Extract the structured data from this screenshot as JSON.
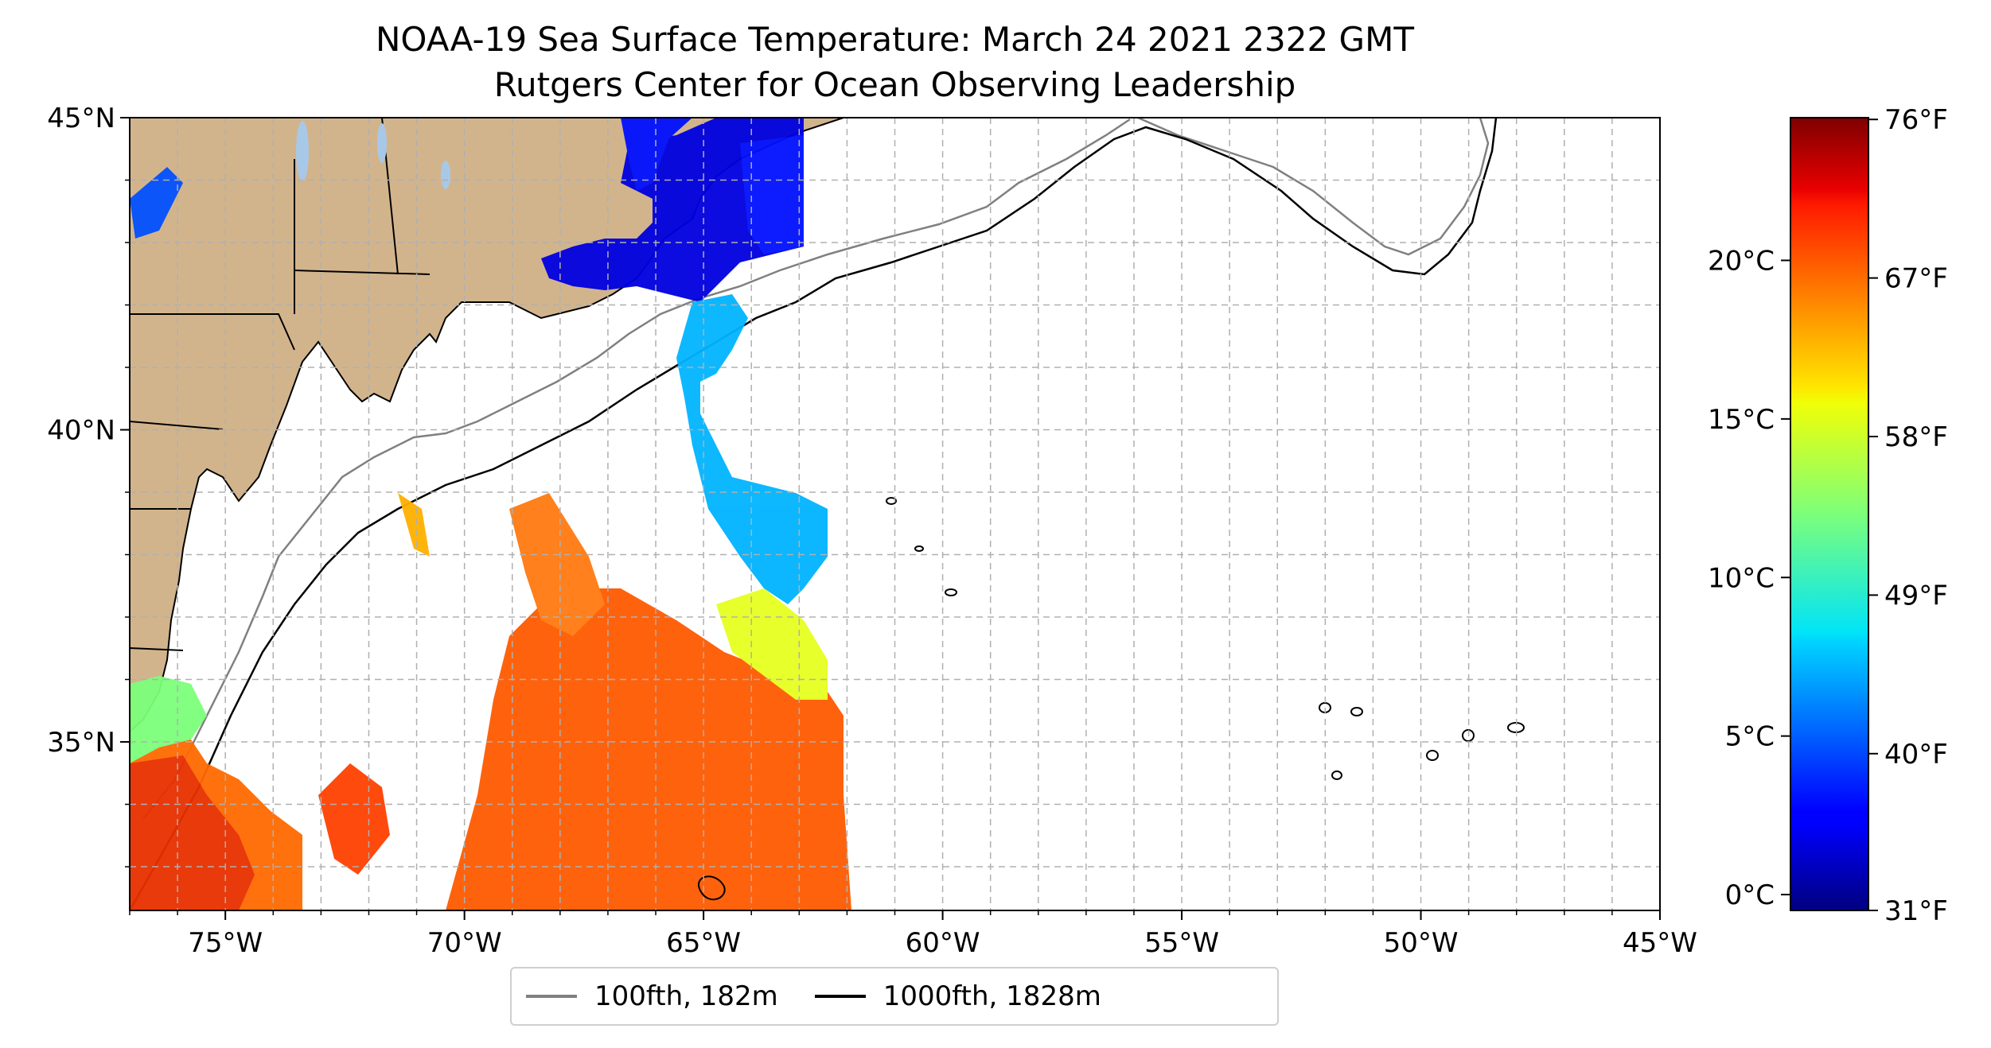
{
  "title": "NOAA-19 Sea Surface Temperature: March 24 2021 2322 GMT",
  "subtitle": "Rutgers Center for Ocean Observing Leadership",
  "map": {
    "lon_range": [
      -77,
      -45
    ],
    "lat_range": [
      32.3,
      45
    ],
    "lon_ticks": [
      {
        "value": -75,
        "label": "75°W"
      },
      {
        "value": -70,
        "label": "70°W"
      },
      {
        "value": -65,
        "label": "65°W"
      },
      {
        "value": -60,
        "label": "60°W"
      },
      {
        "value": -55,
        "label": "55°W"
      },
      {
        "value": -50,
        "label": "50°W"
      },
      {
        "value": -45,
        "label": "45°W"
      }
    ],
    "lat_ticks": [
      {
        "value": 45,
        "label": "45°N"
      },
      {
        "value": 40,
        "label": "40°N"
      },
      {
        "value": 35,
        "label": "35°N"
      }
    ],
    "grid": true,
    "land_color": "#d2b48c",
    "coastline_color": "#000000"
  },
  "colorbar": {
    "colormap": "jet",
    "celsius_range": [
      -0.5,
      24.5
    ],
    "celsius_ticks": [
      {
        "value": 0,
        "label": "0°C"
      },
      {
        "value": 5,
        "label": "5°C"
      },
      {
        "value": 10,
        "label": "10°C"
      },
      {
        "value": 15,
        "label": "15°C"
      },
      {
        "value": 20,
        "label": "20°C"
      }
    ],
    "fahrenheit_ticks": [
      {
        "value": 31,
        "label": "31°F"
      },
      {
        "value": 40,
        "label": "40°F"
      },
      {
        "value": 49,
        "label": "49°F"
      },
      {
        "value": 58,
        "label": "58°F"
      },
      {
        "value": 67,
        "label": "67°F"
      },
      {
        "value": 76,
        "label": "76°F"
      }
    ]
  },
  "legend": {
    "items": [
      {
        "label": "100fth, 182m",
        "color": "#808080"
      },
      {
        "label": "1000fth, 1828m",
        "color": "#000000"
      }
    ]
  }
}
